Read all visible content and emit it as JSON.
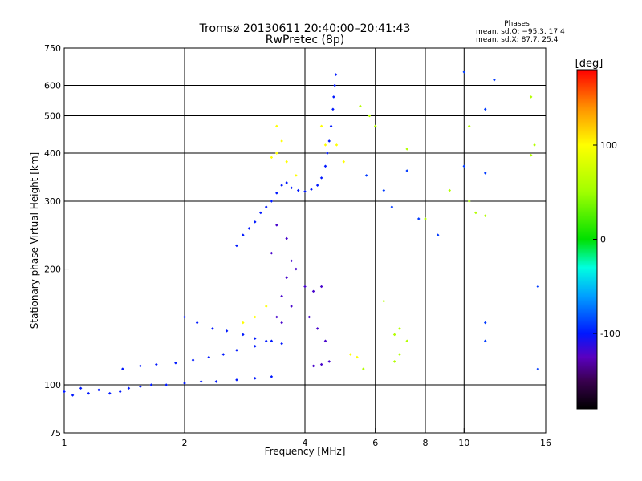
{
  "chart_data": {
    "type": "scatter",
    "title": "Tromsø 20130611 20:40:00–20:41:43",
    "subtitle": "RwPretec (8p)",
    "xlabel": "Frequency [MHz]",
    "ylabel": "Stationary phase Virtual Height [km]",
    "x_scale": "log",
    "y_scale": "log",
    "xlim": [
      1,
      16
    ],
    "ylim": [
      75,
      750
    ],
    "x_ticks": [
      1,
      2,
      4,
      6,
      8,
      10,
      16
    ],
    "x_tick_labels": [
      "1",
      "2",
      "4",
      "6",
      "8",
      "10",
      "16"
    ],
    "x_gridlines": [
      2,
      4,
      6,
      8,
      10
    ],
    "y_ticks": [
      75,
      100,
      200,
      300,
      400,
      500,
      600,
      750
    ],
    "y_tick_labels": [
      "75",
      "100",
      "200",
      "300",
      "400",
      "500",
      "600",
      "750"
    ],
    "y_gridlines": [
      100,
      200,
      300,
      400,
      500,
      600
    ],
    "grid": true,
    "phase_stats": {
      "heading": "Phases",
      "line_o": "mean, sd,O: −95.3, 17.4",
      "line_x": "mean, sd,X:  87.7, 25.4"
    },
    "colorbar": {
      "label": "[deg]",
      "range": [
        -180,
        180
      ],
      "ticks": [
        100,
        0,
        -100
      ],
      "tick_labels": [
        "100",
        "0",
        "-100"
      ],
      "stops": [
        {
          "v": -180,
          "c": "#000000"
        },
        {
          "v": -150,
          "c": "#3a0050"
        },
        {
          "v": -125,
          "c": "#5a00c0"
        },
        {
          "v": -100,
          "c": "#0018ff"
        },
        {
          "v": -60,
          "c": "#00a0ff"
        },
        {
          "v": -30,
          "c": "#00ffe0"
        },
        {
          "v": 0,
          "c": "#00e000"
        },
        {
          "v": 50,
          "c": "#a0ff00"
        },
        {
          "v": 100,
          "c": "#ffff00"
        },
        {
          "v": 140,
          "c": "#ff9000"
        },
        {
          "v": 180,
          "c": "#ff0000"
        }
      ]
    },
    "series": [
      {
        "trace": "E-trace-lower",
        "phase": -100,
        "points": [
          [
            1.0,
            96
          ],
          [
            1.05,
            94
          ],
          [
            1.1,
            98
          ],
          [
            1.15,
            95
          ],
          [
            1.22,
            97
          ],
          [
            1.3,
            95
          ],
          [
            1.38,
            96
          ],
          [
            1.45,
            98
          ],
          [
            1.55,
            99
          ],
          [
            1.65,
            100
          ],
          [
            1.8,
            100
          ],
          [
            2.0,
            101
          ],
          [
            2.2,
            102
          ],
          [
            2.4,
            102
          ],
          [
            2.7,
            103
          ],
          [
            3.0,
            104
          ],
          [
            3.3,
            105
          ]
        ]
      },
      {
        "trace": "E-trace-upper",
        "phase": -100,
        "points": [
          [
            1.4,
            110
          ],
          [
            1.55,
            112
          ],
          [
            1.7,
            113
          ],
          [
            1.9,
            114
          ],
          [
            2.1,
            116
          ],
          [
            2.3,
            118
          ],
          [
            2.5,
            120
          ],
          [
            2.7,
            123
          ],
          [
            3.0,
            126
          ],
          [
            3.3,
            130
          ]
        ]
      },
      {
        "trace": "Es-trace",
        "phase": -100,
        "points": [
          [
            2.0,
            150
          ],
          [
            2.15,
            145
          ],
          [
            2.35,
            140
          ],
          [
            2.55,
            138
          ],
          [
            2.8,
            135
          ],
          [
            3.0,
            132
          ],
          [
            3.2,
            130
          ],
          [
            3.5,
            128
          ]
        ]
      },
      {
        "trace": "F-trace-rising",
        "phase": -100,
        "points": [
          [
            2.7,
            230
          ],
          [
            2.8,
            245
          ],
          [
            2.9,
            255
          ],
          [
            3.0,
            265
          ],
          [
            3.1,
            280
          ],
          [
            3.2,
            290
          ],
          [
            3.3,
            300
          ],
          [
            3.4,
            315
          ],
          [
            3.5,
            330
          ]
        ]
      },
      {
        "trace": "F-cusp",
        "phase": -100,
        "points": [
          [
            3.6,
            335
          ],
          [
            3.7,
            325
          ],
          [
            3.85,
            320
          ],
          [
            4.0,
            318
          ],
          [
            4.15,
            322
          ],
          [
            4.3,
            330
          ],
          [
            4.4,
            345
          ],
          [
            4.5,
            370
          ],
          [
            4.55,
            400
          ],
          [
            4.6,
            430
          ],
          [
            4.65,
            470
          ],
          [
            4.7,
            520
          ],
          [
            4.72,
            560
          ],
          [
            4.75,
            600
          ],
          [
            4.78,
            640
          ]
        ]
      },
      {
        "trace": "F-spread",
        "phase": -120,
        "points": [
          [
            3.4,
            150
          ],
          [
            3.5,
            170
          ],
          [
            3.6,
            190
          ],
          [
            3.7,
            210
          ],
          [
            3.8,
            200
          ],
          [
            3.6,
            240
          ],
          [
            3.4,
            260
          ],
          [
            3.3,
            220
          ],
          [
            3.5,
            145
          ],
          [
            3.7,
            160
          ],
          [
            4.0,
            180
          ],
          [
            4.2,
            175
          ],
          [
            4.4,
            180
          ],
          [
            4.1,
            150
          ],
          [
            4.3,
            140
          ],
          [
            4.5,
            130
          ],
          [
            4.2,
            112
          ],
          [
            4.4,
            113
          ],
          [
            4.6,
            115
          ]
        ]
      },
      {
        "trace": "X-mode-scatter",
        "phase": 100,
        "points": [
          [
            3.4,
            470
          ],
          [
            3.5,
            430
          ],
          [
            3.4,
            400
          ],
          [
            3.3,
            390
          ],
          [
            3.6,
            380
          ],
          [
            4.4,
            470
          ],
          [
            4.5,
            420
          ],
          [
            3.8,
            350
          ],
          [
            4.8,
            420
          ],
          [
            5.0,
            380
          ],
          [
            5.2,
            120
          ],
          [
            5.4,
            118
          ],
          [
            3.2,
            160
          ],
          [
            3.0,
            150
          ],
          [
            2.8,
            145
          ]
        ]
      },
      {
        "trace": "Sparse-high",
        "phase": -90,
        "points": [
          [
            5.7,
            350
          ],
          [
            6.3,
            320
          ],
          [
            6.6,
            290
          ],
          [
            7.2,
            360
          ],
          [
            7.7,
            270
          ],
          [
            8.6,
            245
          ],
          [
            10.0,
            650
          ],
          [
            10.0,
            370
          ],
          [
            11.9,
            620
          ],
          [
            11.3,
            520
          ],
          [
            11.3,
            355
          ],
          [
            15.3,
            110
          ],
          [
            15.3,
            180
          ],
          [
            11.3,
            145
          ],
          [
            11.3,
            130
          ]
        ]
      },
      {
        "trace": "Sparse-mixed",
        "phase": 60,
        "points": [
          [
            5.5,
            530
          ],
          [
            5.8,
            500
          ],
          [
            6.0,
            470
          ],
          [
            7.2,
            410
          ],
          [
            8.0,
            270
          ],
          [
            9.2,
            320
          ],
          [
            10.3,
            470
          ],
          [
            10.3,
            300
          ],
          [
            10.7,
            280
          ],
          [
            11.3,
            275
          ],
          [
            14.7,
            560
          ],
          [
            14.7,
            395
          ],
          [
            15.0,
            420
          ],
          [
            5.6,
            110
          ],
          [
            6.7,
            115
          ],
          [
            6.7,
            135
          ],
          [
            6.9,
            140
          ],
          [
            7.2,
            130
          ],
          [
            6.9,
            120
          ],
          [
            6.3,
            165
          ]
        ]
      }
    ]
  }
}
